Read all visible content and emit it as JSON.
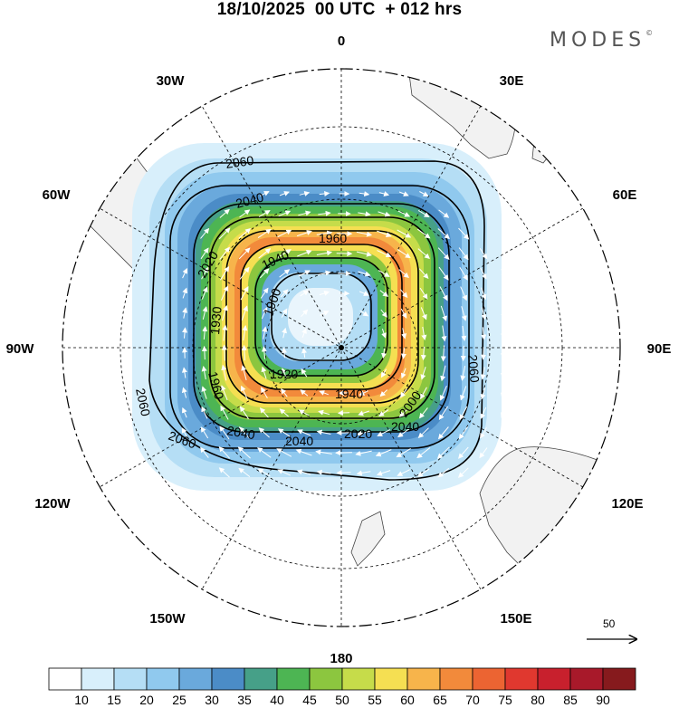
{
  "header": {
    "date": "18/10/2025",
    "time": "00 UTC",
    "lead": "+ 012 hrs",
    "brand": "MODES",
    "brand_mark": "©"
  },
  "longitude_labels": [
    "0",
    "30E",
    "60E",
    "90E",
    "120E",
    "150E",
    "180",
    "150W",
    "120W",
    "90W",
    "60W",
    "30W"
  ],
  "contour_labels": [
    "1900",
    "1920",
    "1930",
    "1940",
    "1940",
    "1960",
    "1960",
    "2000",
    "2020",
    "2020",
    "2040",
    "2040",
    "2040",
    "2040",
    "2060",
    "2060",
    "2060",
    "2060"
  ],
  "vector_reference": {
    "label": "50"
  },
  "colorbar": {
    "labels": [
      "10",
      "15",
      "20",
      "25",
      "30",
      "35",
      "40",
      "45",
      "50",
      "55",
      "60",
      "65",
      "70",
      "75",
      "80",
      "85",
      "90"
    ],
    "colors": [
      "#ffffff",
      "#d8effb",
      "#b5def5",
      "#90c9ee",
      "#6aa9dc",
      "#4b8cc7",
      "#46a088",
      "#4db553",
      "#8cc63f",
      "#c6dc4a",
      "#f5df52",
      "#f7b44b",
      "#f28a3b",
      "#ec6432",
      "#e0382f",
      "#c8202d",
      "#a8192a",
      "#861a1d"
    ]
  }
}
